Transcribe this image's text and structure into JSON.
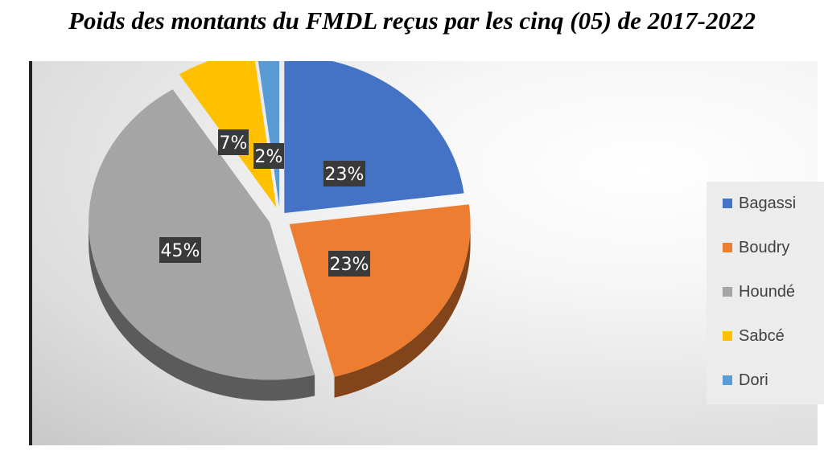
{
  "title": "Poids des montants du FMDL reçus par les cinq (05) de 2017-2022",
  "chart_data": {
    "type": "pie",
    "title": "Poids des montants du FMDL reçus par les cinq (05) de 2017-2022",
    "categories": [
      "Bagassi",
      "Boudry",
      "Houndé",
      "Sabcé",
      "Dori"
    ],
    "values": [
      23,
      23,
      45,
      7,
      2
    ],
    "labels": [
      "23%",
      "23%",
      "45%",
      "7%",
      "2%"
    ],
    "colors": [
      "#4472C4",
      "#ED7D31",
      "#A5A5A5",
      "#FFC000",
      "#5B9BD5"
    ],
    "legend_position": "right",
    "style": "3d-exploded"
  }
}
